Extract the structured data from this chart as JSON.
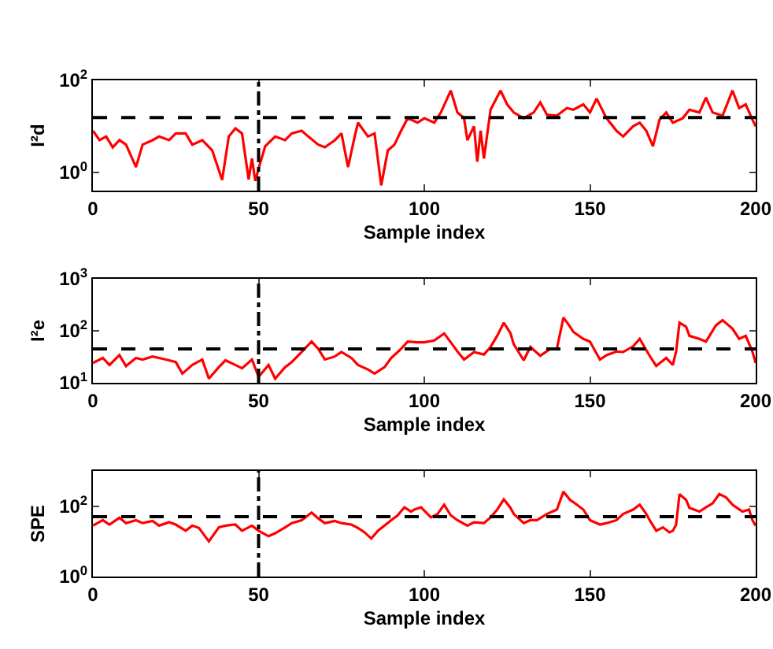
{
  "chart_data": [
    {
      "type": "line",
      "ylabel": "I²d",
      "xlabel": "Sample index",
      "xlim": [
        0,
        200
      ],
      "xticks": [
        0,
        50,
        100,
        150,
        200
      ],
      "ylim": [
        0.4,
        100
      ],
      "yticks": [
        {
          "value": 1,
          "label": "10$^{0}$"
        },
        {
          "value": 100,
          "label": "10$^{2}$"
        }
      ],
      "log": "y",
      "line_style": "solid",
      "x": [
        0,
        2,
        4,
        6,
        8,
        10,
        13,
        15,
        18,
        20,
        23,
        25,
        28,
        30,
        33,
        36,
        39,
        41,
        43,
        45,
        47,
        48,
        49,
        50,
        52,
        55,
        58,
        60,
        63,
        65,
        68,
        70,
        73,
        75,
        77,
        79,
        80,
        83,
        85,
        87,
        89,
        91,
        93,
        95,
        98,
        100,
        103,
        105,
        108,
        110,
        112,
        113,
        115,
        116,
        117,
        118,
        120,
        123,
        125,
        127,
        130,
        133,
        135,
        137,
        140,
        143,
        145,
        148,
        150,
        152,
        155,
        158,
        160,
        163,
        165,
        167,
        169,
        171,
        173,
        175,
        178,
        180,
        183,
        185,
        187,
        190,
        193,
        195,
        197,
        199,
        200
      ],
      "series": [
        {
          "color": "#ff0000",
          "values": [
            8,
            5,
            6,
            3.5,
            5,
            4,
            1.3,
            4,
            5,
            6,
            5,
            7,
            7,
            4,
            5,
            3,
            0.68,
            6,
            9,
            7,
            0.7,
            2,
            0.65,
            1.2,
            3.7,
            6,
            5,
            7,
            8,
            6,
            4,
            3.5,
            5,
            7,
            1.3,
            6,
            12,
            6,
            7,
            0.52,
            3,
            4,
            8,
            15,
            12,
            15,
            12,
            20,
            60,
            20,
            15,
            5,
            10,
            1.7,
            8,
            2,
            23,
            60,
            30,
            20,
            15,
            20,
            33,
            18,
            17,
            25,
            23,
            30,
            20,
            40,
            15,
            8,
            6,
            10,
            12,
            8,
            3.7,
            14,
            20,
            12,
            15,
            23,
            20,
            42,
            20,
            17,
            60,
            25,
            30,
            14,
            10
          ]
        }
      ],
      "ref_lines": [
        {
          "axis": "y",
          "value": 15.5,
          "color": "#000000",
          "line_style": "dashed"
        },
        {
          "axis": "x",
          "value": 50,
          "color": "#000000",
          "line_style": "dashdot"
        }
      ]
    },
    {
      "type": "line",
      "ylabel": "I²e",
      "xlabel": "Sample index",
      "xlim": [
        0,
        200
      ],
      "xticks": [
        0,
        50,
        100,
        150,
        200
      ],
      "ylim": [
        10,
        1000
      ],
      "yticks": [
        {
          "value": 10,
          "label": "10$^{1}$"
        },
        {
          "value": 100,
          "label": "10$^{2}$"
        },
        {
          "value": 1000,
          "label": "10$^{3}$"
        }
      ],
      "log": "y",
      "line_style": "solid",
      "x": [
        0,
        3,
        5,
        8,
        10,
        13,
        15,
        18,
        20,
        23,
        25,
        27,
        30,
        33,
        35,
        38,
        40,
        43,
        45,
        48,
        50,
        53,
        55,
        58,
        60,
        63,
        66,
        68,
        70,
        73,
        75,
        78,
        80,
        83,
        85,
        88,
        90,
        93,
        95,
        98,
        100,
        103,
        106,
        108,
        110,
        112,
        115,
        118,
        120,
        122,
        124,
        126,
        127,
        130,
        132,
        135,
        138,
        140,
        142,
        144,
        145,
        148,
        150,
        153,
        155,
        158,
        160,
        163,
        165,
        168,
        170,
        173,
        175,
        176,
        177,
        179,
        180,
        183,
        185,
        188,
        190,
        193,
        195,
        197,
        199,
        200
      ],
      "series": [
        {
          "color": "#ff0000",
          "values": [
            24,
            30,
            22,
            34,
            21,
            30,
            28,
            32,
            30,
            27,
            25,
            15,
            22,
            28,
            12,
            20,
            27,
            22,
            19,
            28,
            13,
            22,
            12,
            20,
            25,
            39,
            62,
            45,
            28,
            32,
            39,
            30,
            22,
            18,
            15,
            20,
            30,
            45,
            62,
            60,
            60,
            65,
            89,
            60,
            40,
            28,
            39,
            35,
            49,
            80,
            143,
            90,
            55,
            27,
            49,
            33,
            45,
            45,
            180,
            120,
            95,
            70,
            62,
            28,
            34,
            40,
            39,
            50,
            70,
            33,
            21,
            30,
            22,
            40,
            143,
            120,
            80,
            70,
            62,
            127,
            160,
            110,
            70,
            80,
            40,
            24
          ]
        }
      ],
      "ref_lines": [
        {
          "axis": "y",
          "value": 45,
          "color": "#000000",
          "line_style": "dashed"
        },
        {
          "axis": "x",
          "value": 50,
          "color": "#000000",
          "line_style": "dashdot"
        }
      ]
    },
    {
      "type": "line",
      "ylabel": "SPE",
      "xlabel": "Sample index",
      "xlim": [
        0,
        200
      ],
      "xticks": [
        0,
        50,
        100,
        150,
        200
      ],
      "ylim": [
        1,
        1000
      ],
      "yticks": [
        {
          "value": 1,
          "label": "10$^{0}$"
        },
        {
          "value": 100,
          "label": "10$^{2}$"
        }
      ],
      "log": "y",
      "line_style": "solid",
      "x": [
        0,
        3,
        5,
        8,
        10,
        13,
        15,
        18,
        20,
        23,
        25,
        28,
        30,
        32,
        35,
        38,
        40,
        43,
        45,
        48,
        50,
        53,
        55,
        58,
        60,
        63,
        66,
        68,
        70,
        73,
        75,
        78,
        80,
        82,
        84,
        86,
        88,
        90,
        92,
        94,
        96,
        97,
        99,
        102,
        104,
        106,
        108,
        110,
        113,
        115,
        118,
        120,
        122,
        124,
        126,
        127,
        130,
        132,
        134,
        137,
        140,
        142,
        144,
        145,
        148,
        150,
        153,
        155,
        158,
        160,
        163,
        165,
        167,
        168,
        170,
        172,
        174,
        175,
        176,
        177,
        179,
        180,
        183,
        185,
        187,
        189,
        191,
        193,
        196,
        198,
        199,
        200
      ],
      "series": [
        {
          "color": "#ff0000",
          "values": [
            28,
            40,
            30,
            47,
            33,
            40,
            33,
            38,
            28,
            35,
            30,
            20,
            28,
            24,
            10,
            25,
            28,
            30,
            20,
            28,
            20,
            14,
            17,
            25,
            33,
            40,
            66,
            45,
            33,
            38,
            33,
            30,
            24,
            18,
            12,
            20,
            28,
            40,
            55,
            93,
            70,
            80,
            93,
            48,
            60,
            110,
            55,
            40,
            28,
            35,
            33,
            48,
            80,
            156,
            90,
            60,
            33,
            40,
            40,
            60,
            80,
            260,
            150,
            130,
            80,
            40,
            30,
            33,
            40,
            60,
            80,
            110,
            60,
            40,
            20,
            25,
            18,
            20,
            30,
            220,
            150,
            90,
            70,
            93,
            120,
            220,
            180,
            110,
            70,
            80,
            40,
            28
          ]
        }
      ],
      "ref_lines": [
        {
          "axis": "y",
          "value": 50,
          "color": "#000000",
          "line_style": "dashed"
        },
        {
          "axis": "x",
          "value": 50,
          "color": "#000000",
          "line_style": "dashdot"
        }
      ]
    }
  ]
}
